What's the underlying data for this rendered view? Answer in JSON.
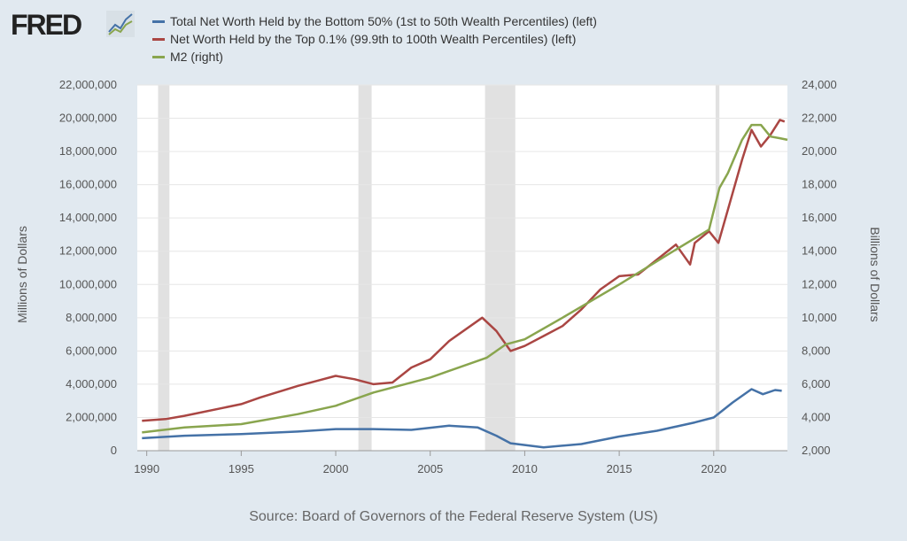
{
  "logo": "FRED",
  "source": "Source: Board of Governors of the Federal Reserve System (US)",
  "chart_data": {
    "type": "line",
    "xlabel": "",
    "ylabel_left": "Millions of Dollars",
    "ylabel_right": "Billions of Dollars",
    "xlim": [
      1989.5,
      2023.9
    ],
    "ylim_left": [
      0,
      22000000
    ],
    "ylim_right": [
      2000,
      24000
    ],
    "x_ticks": [
      "1990",
      "1995",
      "2000",
      "2005",
      "2010",
      "2015",
      "2020"
    ],
    "y_ticks_left": [
      "0",
      "2,000,000",
      "4,000,000",
      "6,000,000",
      "8,000,000",
      "10,000,000",
      "12,000,000",
      "14,000,000",
      "16,000,000",
      "18,000,000",
      "20,000,000",
      "22,000,000"
    ],
    "y_ticks_right": [
      "2,000",
      "4,000",
      "6,000",
      "8,000",
      "10,000",
      "12,000",
      "14,000",
      "16,000",
      "18,000",
      "20,000",
      "22,000",
      "24,000"
    ],
    "grid": true,
    "legend_position": "top",
    "recessions": [
      [
        1990.6,
        1991.2
      ],
      [
        2001.2,
        2001.9
      ],
      [
        2007.9,
        2009.5
      ],
      [
        2020.1,
        2020.3
      ]
    ],
    "series": [
      {
        "name": "Total Net Worth Held by the Bottom 50% (1st to 50th Wealth Percentiles) (left)",
        "color": "#4572a7",
        "axis": "left",
        "x": [
          1989.75,
          1992,
          1995,
          1998,
          2000,
          2002,
          2004,
          2006,
          2007.5,
          2008.5,
          2009.25,
          2011,
          2013,
          2015,
          2017,
          2019,
          2020,
          2021,
          2022,
          2022.6,
          2023.25,
          2023.6
        ],
        "y": [
          750000,
          900000,
          1000000,
          1150000,
          1300000,
          1300000,
          1250000,
          1500000,
          1400000,
          900000,
          450000,
          200000,
          400000,
          850000,
          1200000,
          1700000,
          2000000,
          2900000,
          3700000,
          3400000,
          3650000,
          3600000
        ]
      },
      {
        "name": "Net Worth Held by the Top 0.1% (99.9th to 100th Wealth Percentiles) (left)",
        "color": "#aa4643",
        "axis": "left",
        "x": [
          1989.75,
          1991,
          1992,
          1995,
          1996,
          1998,
          1999,
          2000,
          2001,
          2002,
          2003,
          2004,
          2005,
          2006,
          2007.75,
          2008.5,
          2009.25,
          2010,
          2011,
          2012,
          2013,
          2014,
          2015,
          2016,
          2017,
          2018,
          2018.75,
          2019,
          2019.75,
          2020.25,
          2020.75,
          2021.5,
          2022,
          2022.5,
          2023,
          2023.5,
          2023.75
        ],
        "y": [
          1800000,
          1900000,
          2100000,
          2800000,
          3200000,
          3900000,
          4200000,
          4500000,
          4300000,
          4000000,
          4100000,
          5000000,
          5500000,
          6600000,
          8000000,
          7200000,
          6000000,
          6300000,
          6900000,
          7500000,
          8500000,
          9700000,
          10500000,
          10600000,
          11500000,
          12400000,
          11200000,
          12500000,
          13200000,
          12500000,
          14500000,
          17500000,
          19300000,
          18300000,
          19000000,
          19900000,
          19800000
        ]
      },
      {
        "name": "M2 (right)",
        "color": "#89a54e",
        "axis": "right",
        "x": [
          1989.75,
          1992,
          1995,
          1998,
          2000,
          2002,
          2005,
          2008,
          2009,
          2010,
          2012,
          2015,
          2018,
          2019.75,
          2020.3,
          2020.75,
          2021.5,
          2022,
          2022.5,
          2023,
          2023.5,
          2023.9
        ],
        "y": [
          3100,
          3400,
          3600,
          4200,
          4700,
          5500,
          6400,
          7600,
          8400,
          8700,
          10000,
          12000,
          14100,
          15300,
          17800,
          18700,
          20700,
          21600,
          21600,
          20900,
          20800,
          20700
        ]
      }
    ]
  }
}
